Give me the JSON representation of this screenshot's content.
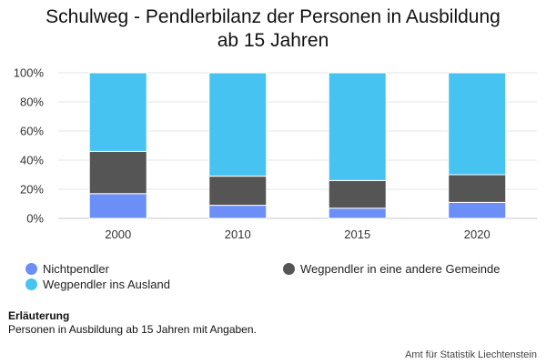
{
  "title": "Schulweg - Pendlerbilanz der Personen in Ausbildung ab 15 Jahren",
  "chart_data": {
    "type": "bar",
    "stacked": true,
    "categories": [
      "2000",
      "2010",
      "2015",
      "2020"
    ],
    "ylim": [
      0,
      100
    ],
    "yticks": [
      "0%",
      "20%",
      "40%",
      "60%",
      "80%",
      "100%"
    ],
    "grid": true,
    "series": [
      {
        "name": "Nichtpendler",
        "color": "#6b8ef7",
        "values": [
          17,
          9,
          7,
          11
        ]
      },
      {
        "name": "Wegpendler in eine andere Gemeinde",
        "color": "#555555",
        "values": [
          29,
          20,
          19,
          19
        ]
      },
      {
        "name": "Wegpendler ins Ausland",
        "color": "#47c3f1",
        "values": [
          54,
          71,
          74,
          70
        ]
      }
    ]
  },
  "legend": [
    {
      "label": "Nichtpendler",
      "color": "#6b8ef7"
    },
    {
      "label": "Wegpendler ins Ausland",
      "color": "#47c3f1"
    },
    {
      "label": "Wegpendler in eine andere Gemeinde",
      "color": "#555555"
    }
  ],
  "note": {
    "heading": "Erläuterung",
    "text": "Personen in Ausbildung ab 15 Jahren mit Angaben."
  },
  "source": "Amt für Statistik Liechtenstein"
}
